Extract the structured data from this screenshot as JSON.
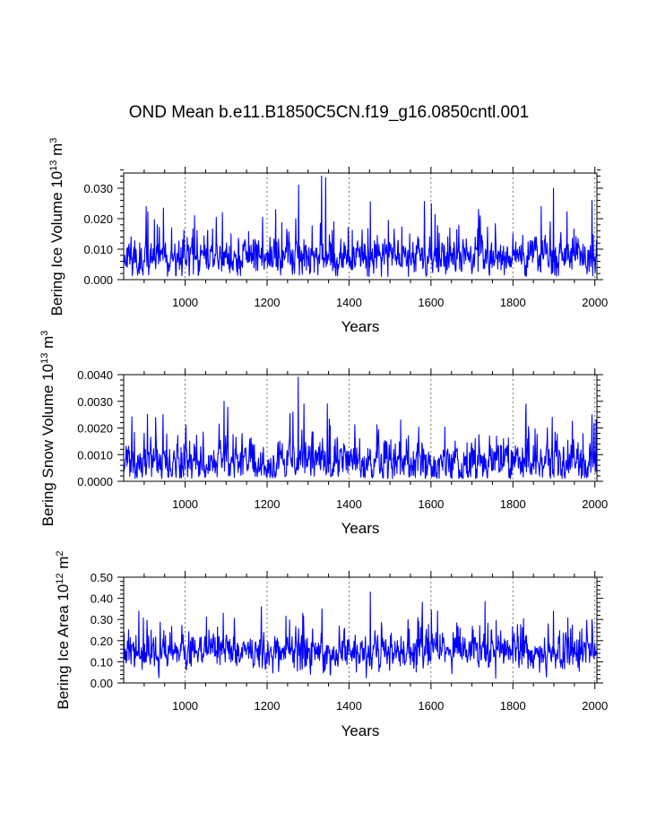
{
  "figure": {
    "title": "OND Mean b.e11.B1850C5CN.f19_g16.0850cntl.001"
  },
  "chart_data": [
    {
      "type": "line",
      "name": "ice-volume",
      "xlabel": "Years",
      "ylabel_main": "Bering Ice Volume 10",
      "ylabel_exp": "13",
      "ylabel_unit": " m",
      "ylabel_unit_exp": "3",
      "xlim": [
        850,
        2005
      ],
      "ylim": [
        0,
        0.035
      ],
      "xticks": [
        1000,
        1200,
        1400,
        1600,
        1800,
        2000
      ],
      "xtick_labels": [
        "1000",
        "1200",
        "1400",
        "1600",
        "1800",
        "2000"
      ],
      "yticks": [
        0,
        0.01,
        0.02,
        0.03
      ],
      "ytick_labels": [
        "0.000",
        "0.010",
        "0.020",
        "0.030"
      ],
      "grid_x": true,
      "series_color": "#0000ff",
      "series": {
        "name": "Bering Ice Volume",
        "x_start": 850,
        "x_step": 1,
        "baseline": 0.0075,
        "noise": 0.0035,
        "floor": 0.001,
        "seed": 11,
        "spikes": [
          [
            1277,
            0.031
          ],
          [
            1333,
            0.034
          ],
          [
            1343,
            0.0335
          ],
          [
            1452,
            0.0255
          ],
          [
            1601,
            0.025
          ],
          [
            1899,
            0.03
          ],
          [
            1993,
            0.026
          ],
          [
            1023,
            0.021
          ],
          [
            1091,
            0.022
          ],
          [
            1716,
            0.023
          ],
          [
            1869,
            0.024
          ],
          [
            905,
            0.024
          ],
          [
            947,
            0.0235
          ]
        ]
      }
    },
    {
      "type": "line",
      "name": "snow-volume",
      "xlabel": "Years",
      "ylabel_main": "Bering Snow Volume 10",
      "ylabel_exp": "13",
      "ylabel_unit": " m",
      "ylabel_unit_exp": "3",
      "xlim": [
        850,
        2005
      ],
      "ylim": [
        0,
        0.004
      ],
      "xticks": [
        1000,
        1200,
        1400,
        1600,
        1800,
        2000
      ],
      "xtick_labels": [
        "1000",
        "1200",
        "1400",
        "1600",
        "1800",
        "2000"
      ],
      "yticks": [
        0,
        0.001,
        0.002,
        0.003,
        0.004
      ],
      "ytick_labels": [
        "0.0000",
        "0.0010",
        "0.0020",
        "0.0030",
        "0.0040"
      ],
      "grid_x": true,
      "series_color": "#0000ff",
      "series": {
        "name": "Bering Snow Volume",
        "x_start": 850,
        "x_step": 1,
        "baseline": 0.0007,
        "noise": 0.00045,
        "floor": 0.0001,
        "seed": 23,
        "spikes": [
          [
            1276,
            0.0039
          ],
          [
            1095,
            0.003
          ],
          [
            1290,
            0.0029
          ],
          [
            1347,
            0.0029
          ],
          [
            1263,
            0.0026
          ],
          [
            946,
            0.0025
          ],
          [
            1993,
            0.0025
          ],
          [
            2003,
            0.0023
          ],
          [
            1896,
            0.0024
          ],
          [
            1526,
            0.0023
          ]
        ]
      }
    },
    {
      "type": "line",
      "name": "ice-area",
      "xlabel": "Years",
      "ylabel_main": "Bering Ice Area 10",
      "ylabel_exp": "12",
      "ylabel_unit": " m",
      "ylabel_unit_exp": "2",
      "xlim": [
        850,
        2005
      ],
      "ylim": [
        0,
        0.5
      ],
      "xticks": [
        1000,
        1200,
        1400,
        1600,
        1800,
        2000
      ],
      "xtick_labels": [
        "1000",
        "1200",
        "1400",
        "1600",
        "1800",
        "2000"
      ],
      "yticks": [
        0,
        0.1,
        0.2,
        0.3,
        0.4,
        0.5
      ],
      "ytick_labels": [
        "0.00",
        "0.10",
        "0.20",
        "0.30",
        "0.40",
        "0.50"
      ],
      "grid_x": true,
      "series_color": "#0000ff",
      "series": {
        "name": "Bering Ice Area",
        "x_start": 850,
        "x_step": 1,
        "baseline": 0.15,
        "noise": 0.05,
        "floor": 0.02,
        "seed": 37,
        "spikes": [
          [
            1452,
            0.43
          ],
          [
            1732,
            0.385
          ],
          [
            1186,
            0.36
          ],
          [
            1334,
            0.35
          ],
          [
            1616,
            0.34
          ],
          [
            1899,
            0.34
          ],
          [
            1287,
            0.33
          ],
          [
            1993,
            0.3
          ],
          [
            1093,
            0.33
          ]
        ]
      }
    }
  ]
}
